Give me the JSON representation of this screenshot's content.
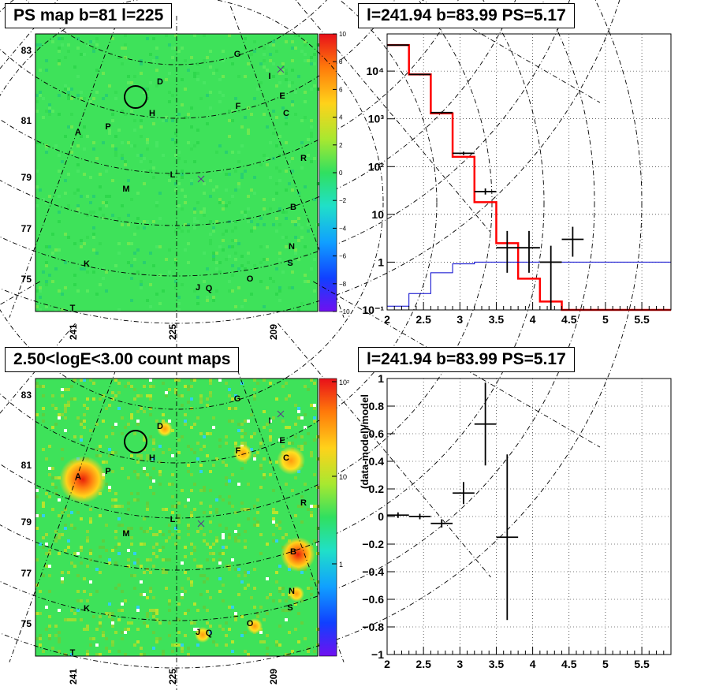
{
  "panels": {
    "ps_map_title": "PS map b=81 l=225",
    "counts_title": "2.50<logE<3.00 count maps",
    "spectrum_title": "l=241.94 b=83.99 PS=5.17",
    "residual_title": "l=241.94 b=83.99 PS=5.17"
  },
  "map": {
    "lat_ticks": [
      "83",
      "81",
      "79",
      "77",
      "75"
    ],
    "lon_ticks": [
      "241",
      "225",
      "209"
    ],
    "sources": [
      "A",
      "B",
      "C",
      "D",
      "E",
      "F",
      "G",
      "H",
      "I",
      "J",
      "K",
      "L",
      "M",
      "N",
      "O",
      "P",
      "Q",
      "R",
      "S",
      "T"
    ],
    "ps_colorbar_labels": [
      "10",
      "8",
      "6",
      "4",
      "2",
      "0",
      "−2",
      "−4",
      "−6",
      "−8",
      "−10"
    ],
    "counts_colorbar_labels": [
      "10²",
      "10",
      "1"
    ],
    "colors": {
      "map_base": "#3ee25a",
      "ring": "#000000",
      "cross": "#5a3a8a"
    }
  },
  "chart_data": [
    {
      "type": "line",
      "panel": "spectrum",
      "title": "l=241.94 b=83.99 PS=5.17",
      "xlabel": "",
      "ylabel": "",
      "xlim": [
        2,
        5.9
      ],
      "ylim": [
        0.1,
        60000
      ],
      "yscale": "log",
      "xticks": [
        "2",
        "2.5",
        "3",
        "3.5",
        "4",
        "4.5",
        "5",
        "5.5"
      ],
      "yticks": [
        "10⁻¹",
        "1",
        "10",
        "10²",
        "10³",
        "10⁴"
      ],
      "grid": true,
      "series": [
        {
          "type": "step",
          "color": "#ff0000",
          "edges": [
            2.0,
            2.3,
            2.6,
            2.9,
            3.2,
            3.5,
            3.8,
            4.1,
            4.4,
            4.7,
            5.0,
            5.9
          ],
          "values": [
            35000,
            8500,
            1300,
            160,
            18,
            2.5,
            0.45,
            0.15,
            0.1,
            0.1,
            0.1
          ]
        },
        {
          "type": "step",
          "color": "#0000cc",
          "edges": [
            2.0,
            2.3,
            2.6,
            2.9,
            3.2,
            3.5,
            3.8,
            4.1,
            4.4,
            4.7,
            5.0,
            5.9
          ],
          "values": [
            0.12,
            0.22,
            0.6,
            0.92,
            1.0,
            1.0,
            1.0,
            1.0,
            1.0,
            1.0,
            1.0
          ]
        },
        {
          "type": "errorbar",
          "color": "#000000",
          "points": [
            {
              "x": 2.15,
              "y": 35000,
              "xerr": 0.15,
              "ylo": 34000,
              "yhi": 36000
            },
            {
              "x": 2.45,
              "y": 8500,
              "xerr": 0.15,
              "ylo": 8200,
              "yhi": 8800
            },
            {
              "x": 2.75,
              "y": 1350,
              "xerr": 0.15,
              "ylo": 1280,
              "yhi": 1420
            },
            {
              "x": 3.05,
              "y": 190,
              "xerr": 0.15,
              "ylo": 175,
              "yhi": 205
            },
            {
              "x": 3.35,
              "y": 30,
              "xerr": 0.15,
              "ylo": 26,
              "yhi": 35
            },
            {
              "x": 3.65,
              "y": 2.0,
              "xerr": 0.15,
              "ylo": 0.6,
              "yhi": 4.5
            },
            {
              "x": 3.95,
              "y": 2.0,
              "xerr": 0.15,
              "ylo": 0.6,
              "yhi": 4.5
            },
            {
              "x": 4.25,
              "y": 1.0,
              "xerr": 0.15,
              "ylo": 0.1,
              "yhi": 2.2
            },
            {
              "x": 4.55,
              "y": 3.0,
              "xerr": 0.15,
              "ylo": 1.3,
              "yhi": 5.5
            }
          ]
        }
      ]
    },
    {
      "type": "scatter",
      "panel": "residual",
      "title": "l=241.94 b=83.99 PS=5.17",
      "xlabel": "",
      "ylabel": "(data-model)/model",
      "xlim": [
        2,
        5.9
      ],
      "ylim": [
        -1,
        1
      ],
      "xticks": [
        "2",
        "2.5",
        "3",
        "3.5",
        "4",
        "4.5",
        "5",
        "5.5"
      ],
      "yticks": [
        "−1",
        "−0.8",
        "−0.6",
        "−0.4",
        "−0.2",
        "0",
        "0.2",
        "0.4",
        "0.6",
        "0.8",
        "1"
      ],
      "grid": true,
      "series": [
        {
          "type": "errorbar",
          "color": "#000000",
          "points": [
            {
              "x": 2.15,
              "y": 0.01,
              "xerr": 0.15,
              "yerr": 0.02
            },
            {
              "x": 2.45,
              "y": 0.0,
              "xerr": 0.15,
              "yerr": 0.02
            },
            {
              "x": 2.75,
              "y": -0.05,
              "xerr": 0.15,
              "yerr": 0.03
            },
            {
              "x": 3.05,
              "y": 0.17,
              "xerr": 0.15,
              "yerr": 0.08
            },
            {
              "x": 3.35,
              "y": 0.67,
              "xerr": 0.15,
              "yerr": 0.3
            },
            {
              "x": 3.65,
              "y": -0.15,
              "xerr": 0.15,
              "yerr": 0.6
            }
          ]
        }
      ]
    }
  ]
}
